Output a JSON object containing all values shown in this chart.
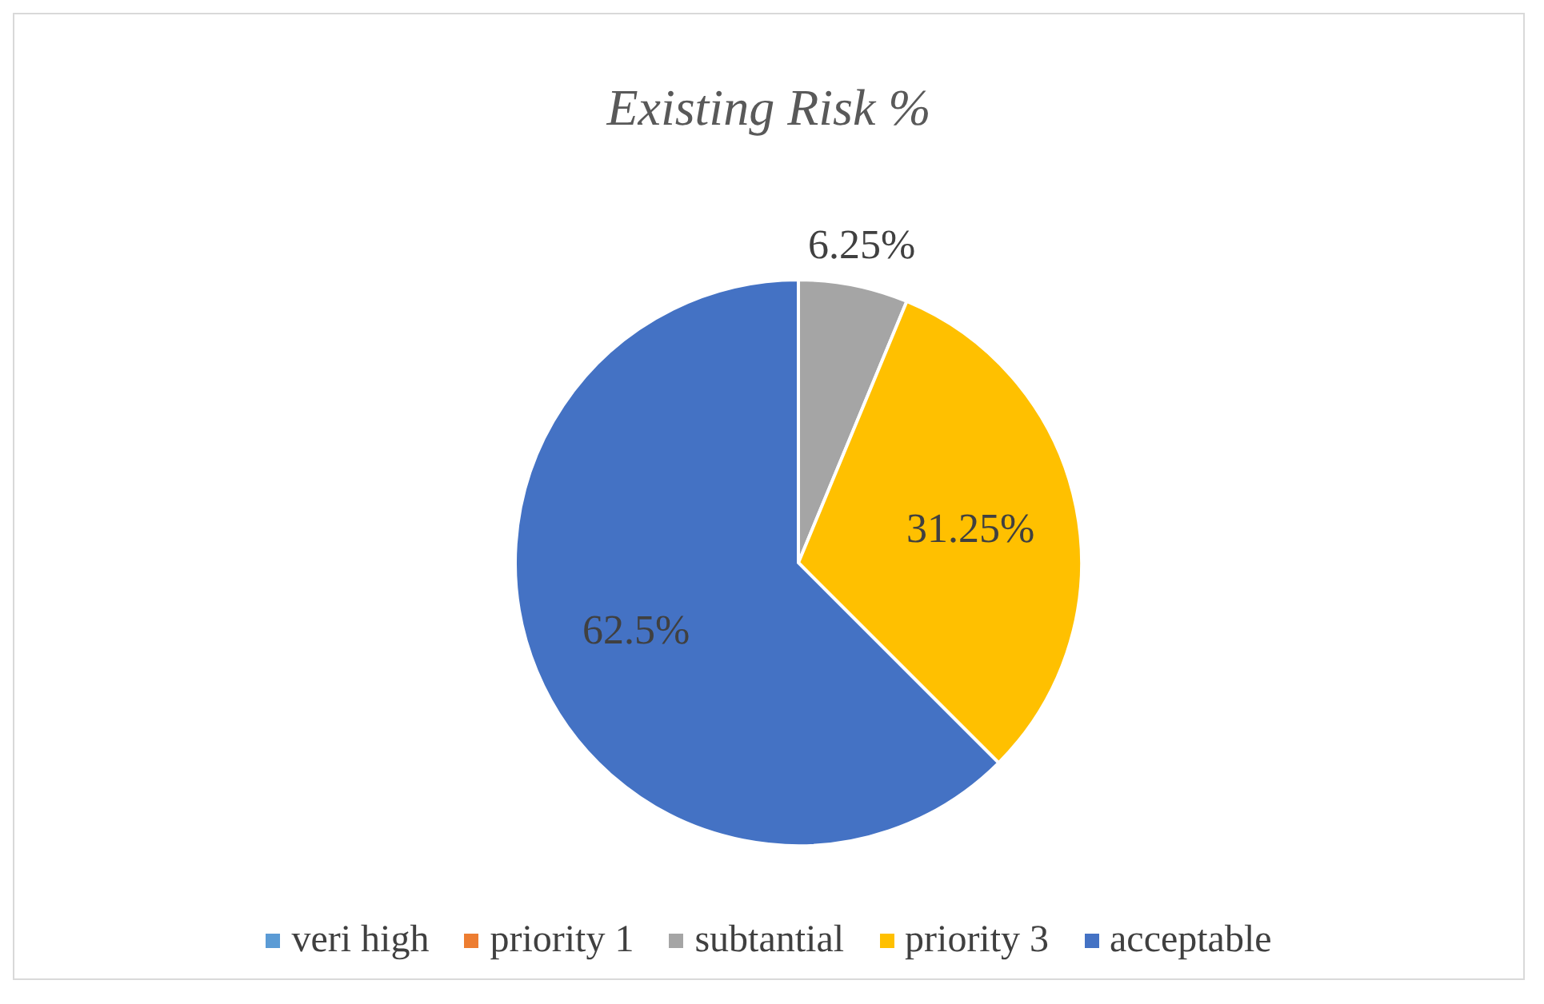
{
  "chart_data": {
    "type": "pie",
    "title": "Existing Risk %",
    "categories": [
      "veri high",
      "priority 1",
      "subtantial",
      "priority 3",
      "acceptable"
    ],
    "values": [
      0,
      0,
      6.25,
      31.25,
      62.5
    ],
    "colors": [
      "#5b9bd5",
      "#ed7d31",
      "#a5a5a5",
      "#ffc000",
      "#4472c4"
    ],
    "value_labels": [
      null,
      null,
      "6.25%",
      "31.25%",
      "62.5%"
    ],
    "legend": "bottom"
  }
}
